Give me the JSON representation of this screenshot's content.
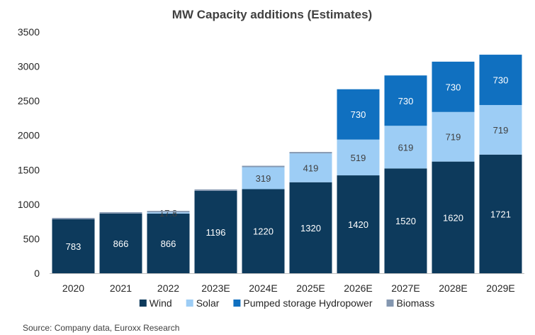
{
  "chart_data": {
    "type": "bar",
    "stacked": true,
    "title": "MW Capacity additions (Estimates)",
    "xlabel": "",
    "ylabel": "",
    "ylim": [
      0,
      3500
    ],
    "yticks": [
      0,
      500,
      1000,
      1500,
      2000,
      2500,
      3000,
      3500
    ],
    "grid": false,
    "legend_position": "bottom",
    "categories": [
      "2020",
      "2021",
      "2022",
      "2023E",
      "2024E",
      "2025E",
      "2026E",
      "2027E",
      "2028E",
      "2029E"
    ],
    "series": [
      {
        "name": "Wind",
        "color": "#0d3a5c",
        "values": [
          783,
          866,
          866,
          1196,
          1220,
          1320,
          1420,
          1520,
          1620,
          1721
        ],
        "labels": [
          "783",
          "866",
          "866",
          "1196",
          "1220",
          "1320",
          "1420",
          "1520",
          "1620",
          "1721"
        ],
        "label_color": "#ffffff"
      },
      {
        "name": "Solar",
        "color": "#9dcdf5",
        "values": [
          0,
          0,
          17.8,
          0,
          319,
          419,
          519,
          619,
          719,
          719
        ],
        "labels": [
          "",
          "",
          "17.8",
          "",
          "319",
          "419",
          "519",
          "619",
          "719",
          "719"
        ],
        "label_color": "#404040"
      },
      {
        "name": "Pumped storage Hydropower",
        "color": "#1070c0",
        "values": [
          0,
          0,
          0,
          0,
          0,
          0,
          730,
          730,
          730,
          730
        ],
        "labels": [
          "",
          "",
          "",
          "",
          "",
          "",
          "730",
          "730",
          "730",
          "730"
        ],
        "label_color": "#ffffff"
      },
      {
        "name": "Biomass",
        "color": "#8497b0",
        "values": [
          20,
          20,
          20,
          20,
          20,
          20,
          0,
          0,
          0,
          0
        ],
        "labels": [
          "",
          "",
          "",
          "",
          "",
          "",
          "",
          "",
          "",
          ""
        ],
        "label_color": "#ffffff"
      }
    ]
  },
  "source": "Source: Company data, Euroxx Research"
}
